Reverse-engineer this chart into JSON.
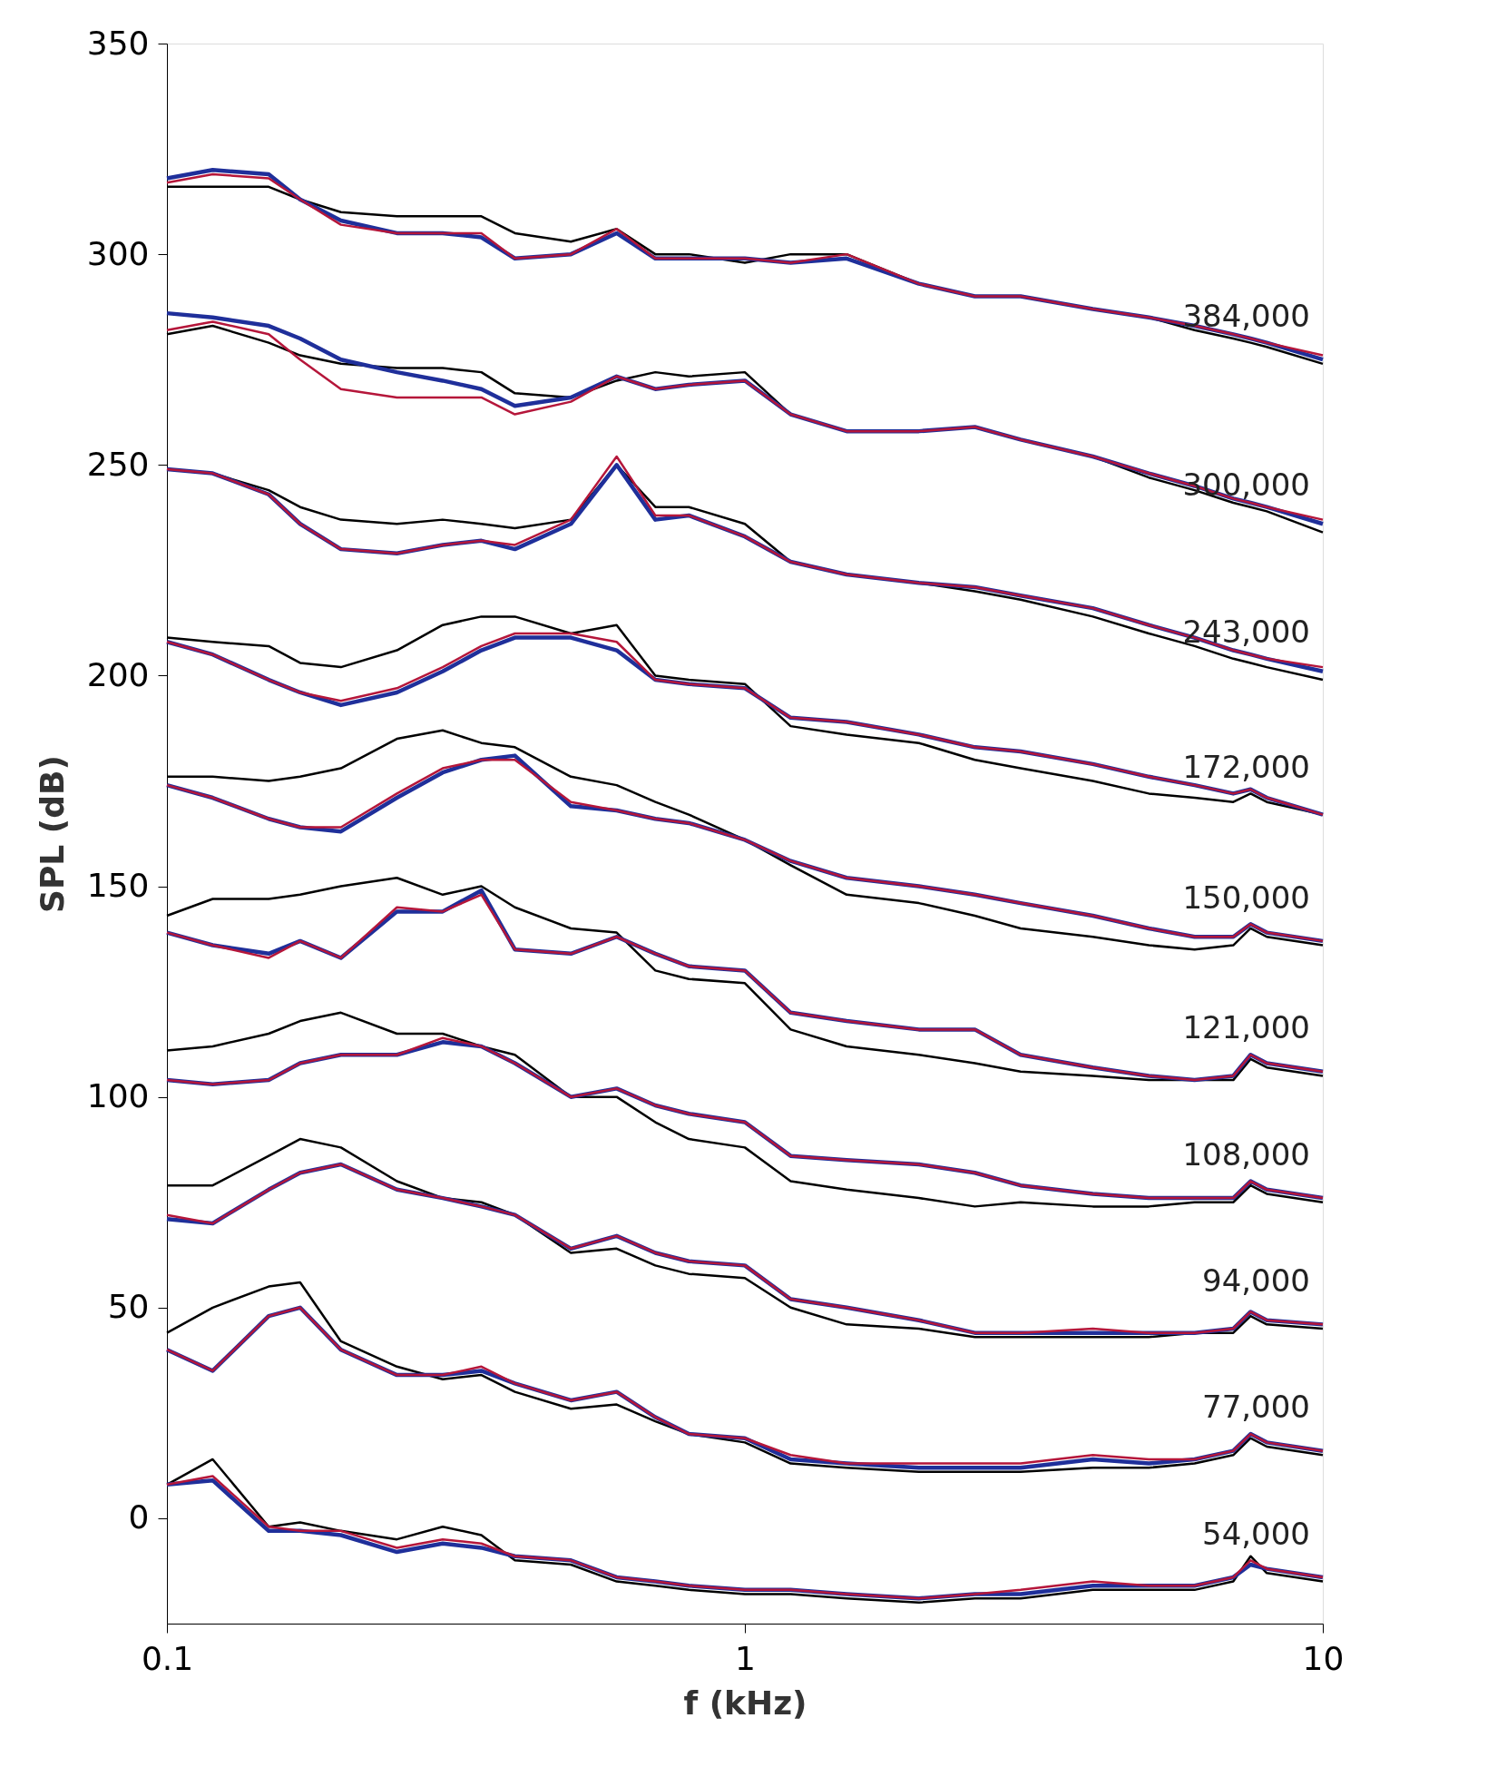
{
  "chart_data": {
    "type": "line",
    "xlabel": "f (kHz)",
    "ylabel": "SPL (dB)",
    "log": "x",
    "grid": false,
    "legend": false,
    "line_style": "solid",
    "marker": "none",
    "xlim": [
      0.1,
      10
    ],
    "xticks": [
      0.1,
      1,
      10
    ],
    "ylim": [
      -25,
      350
    ],
    "yticks": [
      0,
      50,
      100,
      150,
      200,
      250,
      300,
      350
    ],
    "x": [
      0.1,
      0.12,
      0.15,
      0.17,
      0.2,
      0.25,
      0.3,
      0.35,
      0.4,
      0.5,
      0.6,
      0.7,
      0.8,
      1,
      1.2,
      1.5,
      2,
      2.5,
      3,
      4,
      5,
      6,
      7,
      7.5,
      8,
      10
    ],
    "series": [
      {
        "color": "#000000",
        "values": [
          316,
          316,
          316,
          313,
          310,
          309,
          309,
          309,
          305,
          303,
          306,
          300,
          300,
          298,
          300,
          300,
          293,
          290,
          290,
          287,
          285,
          282,
          280,
          279,
          278,
          274
        ]
      },
      {
        "color": "#1f2f9a",
        "values": [
          318,
          320,
          319,
          313,
          308,
          305,
          305,
          304,
          299,
          300,
          305,
          299,
          299,
          299,
          298,
          299,
          293,
          290,
          290,
          287,
          285,
          283,
          281,
          280,
          279,
          275
        ]
      },
      {
        "color": "#b5163a",
        "values": [
          317,
          319,
          318,
          313,
          307,
          305,
          305,
          305,
          299,
          300,
          306,
          299,
          299,
          299,
          298,
          300,
          293,
          290,
          290,
          287,
          285,
          283,
          281,
          280,
          279,
          276
        ]
      },
      {
        "color": "#000000",
        "values": [
          281,
          283,
          279,
          276,
          274,
          273,
          273,
          272,
          267,
          266,
          270,
          272,
          271,
          272,
          262,
          258,
          258,
          259,
          256,
          252,
          247,
          244,
          241,
          240,
          239,
          234
        ]
      },
      {
        "color": "#1f2f9a",
        "values": [
          286,
          285,
          283,
          280,
          275,
          272,
          270,
          268,
          264,
          266,
          271,
          268,
          269,
          270,
          262,
          258,
          258,
          259,
          256,
          252,
          248,
          245,
          242,
          241,
          240,
          236
        ]
      },
      {
        "color": "#b5163a",
        "values": [
          282,
          284,
          281,
          275,
          268,
          266,
          266,
          266,
          262,
          265,
          271,
          268,
          269,
          270,
          262,
          258,
          258,
          259,
          256,
          252,
          248,
          245,
          242,
          241,
          240,
          237
        ]
      },
      {
        "color": "#000000",
        "values": [
          249,
          248,
          244,
          240,
          237,
          236,
          237,
          236,
          235,
          237,
          250,
          240,
          240,
          236,
          227,
          224,
          222,
          220,
          218,
          214,
          210,
          207,
          204,
          203,
          202,
          199
        ]
      },
      {
        "color": "#1f2f9a",
        "values": [
          249,
          248,
          243,
          236,
          230,
          229,
          231,
          232,
          230,
          236,
          250,
          237,
          238,
          233,
          227,
          224,
          222,
          221,
          219,
          216,
          212,
          209,
          206,
          205,
          204,
          201
        ]
      },
      {
        "color": "#b5163a",
        "values": [
          249,
          248,
          243,
          236,
          230,
          229,
          231,
          232,
          231,
          237,
          252,
          238,
          238,
          233,
          227,
          224,
          222,
          221,
          219,
          216,
          212,
          209,
          206,
          205,
          204,
          202
        ]
      },
      {
        "color": "#000000",
        "values": [
          209,
          208,
          207,
          203,
          202,
          206,
          212,
          214,
          214,
          210,
          212,
          200,
          199,
          198,
          188,
          186,
          184,
          180,
          178,
          175,
          172,
          171,
          170,
          172,
          170,
          167
        ]
      },
      {
        "color": "#1f2f9a",
        "values": [
          208,
          205,
          199,
          196,
          193,
          196,
          201,
          206,
          209,
          209,
          206,
          199,
          198,
          197,
          190,
          189,
          186,
          183,
          182,
          179,
          176,
          174,
          172,
          173,
          171,
          167
        ]
      },
      {
        "color": "#b5163a",
        "values": [
          208,
          205,
          199,
          196,
          194,
          197,
          202,
          207,
          210,
          210,
          208,
          199,
          198,
          197,
          190,
          189,
          186,
          183,
          182,
          179,
          176,
          174,
          172,
          173,
          171,
          167
        ]
      },
      {
        "color": "#000000",
        "values": [
          176,
          176,
          175,
          176,
          178,
          185,
          187,
          184,
          183,
          176,
          174,
          170,
          167,
          161,
          155,
          148,
          146,
          143,
          140,
          138,
          136,
          135,
          136,
          140,
          138,
          136
        ]
      },
      {
        "color": "#1f2f9a",
        "values": [
          174,
          171,
          166,
          164,
          163,
          171,
          177,
          180,
          181,
          169,
          168,
          166,
          165,
          161,
          156,
          152,
          150,
          148,
          146,
          143,
          140,
          138,
          138,
          141,
          139,
          137
        ]
      },
      {
        "color": "#b5163a",
        "values": [
          174,
          171,
          166,
          164,
          164,
          172,
          178,
          180,
          180,
          170,
          168,
          166,
          165,
          161,
          156,
          152,
          150,
          148,
          146,
          143,
          140,
          138,
          138,
          141,
          139,
          137
        ]
      },
      {
        "color": "#000000",
        "values": [
          143,
          147,
          147,
          148,
          150,
          152,
          148,
          150,
          145,
          140,
          139,
          130,
          128,
          127,
          116,
          112,
          110,
          108,
          106,
          105,
          104,
          104,
          104,
          109,
          107,
          105
        ]
      },
      {
        "color": "#1f2f9a",
        "values": [
          139,
          136,
          134,
          137,
          133,
          144,
          144,
          149,
          135,
          134,
          138,
          134,
          131,
          130,
          120,
          118,
          116,
          116,
          110,
          107,
          105,
          104,
          105,
          110,
          108,
          106
        ]
      },
      {
        "color": "#b5163a",
        "values": [
          139,
          136,
          133,
          137,
          133,
          145,
          144,
          148,
          135,
          134,
          138,
          134,
          131,
          130,
          120,
          118,
          116,
          116,
          110,
          107,
          105,
          104,
          105,
          110,
          108,
          106
        ]
      },
      {
        "color": "#000000",
        "values": [
          111,
          112,
          115,
          118,
          120,
          115,
          115,
          112,
          110,
          100,
          100,
          94,
          90,
          88,
          80,
          78,
          76,
          74,
          75,
          74,
          74,
          75,
          75,
          79,
          77,
          75
        ]
      },
      {
        "color": "#1f2f9a",
        "values": [
          104,
          103,
          104,
          108,
          110,
          110,
          113,
          112,
          108,
          100,
          102,
          98,
          96,
          94,
          86,
          85,
          84,
          82,
          79,
          77,
          76,
          76,
          76,
          80,
          78,
          76
        ]
      },
      {
        "color": "#b5163a",
        "values": [
          104,
          103,
          104,
          108,
          110,
          110,
          114,
          112,
          108,
          100,
          102,
          98,
          96,
          94,
          86,
          85,
          84,
          82,
          79,
          77,
          76,
          76,
          76,
          80,
          78,
          76
        ]
      },
      {
        "color": "#000000",
        "values": [
          79,
          79,
          86,
          90,
          88,
          80,
          76,
          75,
          72,
          63,
          64,
          60,
          58,
          57,
          50,
          46,
          45,
          43,
          43,
          43,
          43,
          44,
          44,
          48,
          46,
          45
        ]
      },
      {
        "color": "#1f2f9a",
        "values": [
          71,
          70,
          78,
          82,
          84,
          78,
          76,
          74,
          72,
          64,
          67,
          63,
          61,
          60,
          52,
          50,
          47,
          44,
          44,
          44,
          44,
          44,
          45,
          49,
          47,
          46
        ]
      },
      {
        "color": "#b5163a",
        "values": [
          72,
          70,
          78,
          82,
          84,
          78,
          76,
          74,
          72,
          64,
          67,
          63,
          61,
          60,
          52,
          50,
          47,
          44,
          44,
          45,
          44,
          44,
          45,
          49,
          47,
          46
        ]
      },
      {
        "color": "#000000",
        "values": [
          44,
          50,
          55,
          56,
          42,
          36,
          33,
          34,
          30,
          26,
          27,
          23,
          20,
          18,
          13,
          12,
          11,
          11,
          11,
          12,
          12,
          13,
          15,
          19,
          17,
          15
        ]
      },
      {
        "color": "#1f2f9a",
        "values": [
          40,
          35,
          48,
          50,
          40,
          34,
          34,
          35,
          32,
          28,
          30,
          24,
          20,
          19,
          14,
          13,
          12,
          12,
          12,
          14,
          13,
          14,
          16,
          20,
          18,
          16
        ]
      },
      {
        "color": "#b5163a",
        "values": [
          40,
          35,
          48,
          50,
          40,
          34,
          34,
          36,
          32,
          28,
          30,
          24,
          20,
          19,
          15,
          13,
          13,
          13,
          13,
          15,
          14,
          14,
          16,
          20,
          18,
          16
        ]
      },
      {
        "color": "#000000",
        "values": [
          8,
          14,
          -2,
          -1,
          -3,
          -5,
          -2,
          -4,
          -10,
          -11,
          -15,
          -16,
          -17,
          -18,
          -18,
          -19,
          -20,
          -19,
          -19,
          -17,
          -17,
          -17,
          -15,
          -9,
          -13,
          -15
        ]
      },
      {
        "color": "#1f2f9a",
        "values": [
          8,
          9,
          -3,
          -3,
          -4,
          -8,
          -6,
          -7,
          -9,
          -10,
          -14,
          -15,
          -16,
          -17,
          -17,
          -18,
          -19,
          -18,
          -18,
          -16,
          -16,
          -16,
          -14,
          -11,
          -12,
          -14
        ]
      },
      {
        "color": "#b5163a",
        "values": [
          8,
          10,
          -2,
          -3,
          -3,
          -7,
          -5,
          -6,
          -9,
          -10,
          -14,
          -15,
          -16,
          -17,
          -17,
          -18,
          -19,
          -18,
          -17,
          -15,
          -16,
          -16,
          -14,
          -10,
          -12,
          -14
        ]
      }
    ],
    "annotations": [
      "384,000",
      "300,000",
      "243,000",
      "172,000",
      "150,000",
      "121,000",
      "108,000",
      "94,000",
      "77,000",
      "54,000"
    ]
  }
}
